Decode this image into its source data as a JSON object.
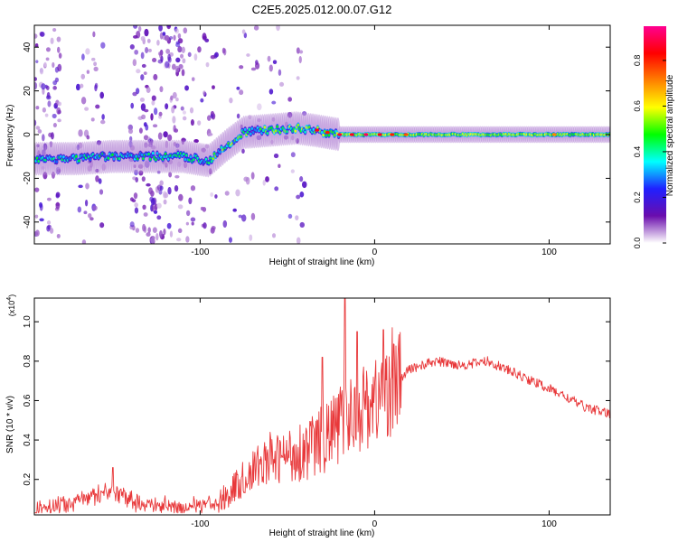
{
  "title": "C2E5.2025.012.00.07.G12",
  "chart_data": [
    {
      "type": "heatmap",
      "xlabel": "Height of straight line (km)",
      "ylabel": "Frequency (Hz)",
      "xlim": [
        -195,
        135
      ],
      "ylim": [
        -50,
        50
      ],
      "xticks": [
        -100,
        0,
        100
      ],
      "xtick_labels": [
        "-100",
        "0",
        "100"
      ],
      "yticks": [
        -40,
        -20,
        0,
        20,
        40
      ],
      "ytick_labels": [
        "-40",
        "-20",
        "0",
        "20",
        "40"
      ],
      "colorbar": {
        "label": "Normalized spectral amplitude",
        "range": [
          0,
          0.95
        ],
        "ticks": [
          0,
          0.2,
          0.4,
          0.6,
          0.8
        ],
        "tick_labels": [
          "0.0",
          "0.2",
          "0.4",
          "0.6",
          "0.8"
        ],
        "colors": [
          "#ffffff",
          "#6a0dad",
          "#2020ff",
          "#00ffff",
          "#00ff00",
          "#ffff00",
          "#ff8000",
          "#ff0000",
          "#ff0090"
        ]
      },
      "ridge": [
        {
          "x": -190,
          "f": -11
        },
        {
          "x": -170,
          "f": -11
        },
        {
          "x": -150,
          "f": -10
        },
        {
          "x": -130,
          "f": -10
        },
        {
          "x": -110,
          "f": -10
        },
        {
          "x": -95,
          "f": -12
        },
        {
          "x": -85,
          "f": -5
        },
        {
          "x": -75,
          "f": 1
        },
        {
          "x": -60,
          "f": 2
        },
        {
          "x": -45,
          "f": 3
        },
        {
          "x": -35,
          "f": 2
        },
        {
          "x": -20,
          "f": 0
        },
        {
          "x": 0,
          "f": 0
        },
        {
          "x": 50,
          "f": 0
        },
        {
          "x": 135,
          "f": 0
        }
      ]
    },
    {
      "type": "line",
      "xlabel": "Height of straight line (km)",
      "ylabel": "SNR (10 * v/v)",
      "y_multiplier": "(x10",
      "y_multiplier_exp": "4",
      "y_multiplier_close": ")",
      "xlim": [
        -195,
        135
      ],
      "ylim": [
        0.02,
        1.12
      ],
      "xticks": [
        -100,
        0,
        100
      ],
      "xtick_labels": [
        "-100",
        "0",
        "100"
      ],
      "yticks": [
        0.2,
        0.4,
        0.6,
        0.8,
        1.0
      ],
      "ytick_labels": [
        "0.2",
        "0.4",
        "0.6",
        "0.8",
        "1.0"
      ],
      "color": "#e8383a",
      "envelope": [
        {
          "x": -195,
          "y": 0.04
        },
        {
          "x": -180,
          "y": 0.07
        },
        {
          "x": -160,
          "y": 0.12
        },
        {
          "x": -150,
          "y": 0.14
        },
        {
          "x": -135,
          "y": 0.08
        },
        {
          "x": -110,
          "y": 0.06
        },
        {
          "x": -90,
          "y": 0.08
        },
        {
          "x": -80,
          "y": 0.16
        },
        {
          "x": -65,
          "y": 0.28
        },
        {
          "x": -50,
          "y": 0.32
        },
        {
          "x": -40,
          "y": 0.35
        },
        {
          "x": -30,
          "y": 0.4
        },
        {
          "x": -20,
          "y": 0.48
        },
        {
          "x": -10,
          "y": 0.55
        },
        {
          "x": 0,
          "y": 0.6
        },
        {
          "x": 10,
          "y": 0.66
        },
        {
          "x": 20,
          "y": 0.76
        },
        {
          "x": 35,
          "y": 0.8
        },
        {
          "x": 50,
          "y": 0.78
        },
        {
          "x": 65,
          "y": 0.8
        },
        {
          "x": 75,
          "y": 0.76
        },
        {
          "x": 90,
          "y": 0.7
        },
        {
          "x": 105,
          "y": 0.64
        },
        {
          "x": 120,
          "y": 0.57
        },
        {
          "x": 135,
          "y": 0.53
        }
      ],
      "spikes": [
        {
          "x": -150,
          "y": 0.26
        },
        {
          "x": -60,
          "y": 0.44
        },
        {
          "x": -30,
          "y": 0.82
        },
        {
          "x": -17,
          "y": 1.14
        },
        {
          "x": -10,
          "y": 0.95
        },
        {
          "x": 5,
          "y": 0.96
        },
        {
          "x": 10,
          "y": 0.97
        }
      ]
    }
  ]
}
